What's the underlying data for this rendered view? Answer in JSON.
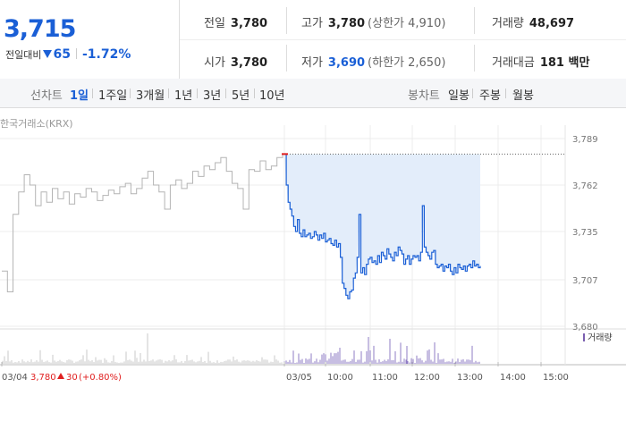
{
  "summary": {
    "price": "3,715",
    "change_label": "전일대비",
    "change_amount": "65",
    "change_percent": "-1.72%"
  },
  "stats": {
    "prev_close_label": "전일",
    "prev_close": "3,780",
    "high_label": "고가",
    "high": "3,780",
    "upper_limit": "(상한가 4,910)",
    "volume_label": "거래량",
    "volume": "48,697",
    "open_label": "시가",
    "open": "3,780",
    "low_label": "저가",
    "low": "3,690",
    "lower_limit": "(하한가 2,650)",
    "trade_value_label": "거래대금",
    "trade_value": "181 백만"
  },
  "tabs": {
    "line_label": "선차트",
    "line_items": [
      "1일",
      "1주일",
      "3개월",
      "1년",
      "3년",
      "5년",
      "10년"
    ],
    "candle_label": "봉차트",
    "candle_items": [
      "일봉",
      "주봉",
      "월봉"
    ],
    "active": "1일"
  },
  "exchange_label": "한국거래소(KRX)",
  "colors": {
    "up": "#e02020",
    "down": "#1a5fd6",
    "prev_day_line": "#b4b4b4",
    "fill": "#e3edfa"
  },
  "chart_data": {
    "type": "line",
    "ylim": [
      3680,
      3789
    ],
    "y_ticks": [
      3789,
      3762,
      3735,
      3707,
      3680
    ],
    "x_ticks": [
      "03/04",
      "03/05",
      "10:00",
      "11:00",
      "12:00",
      "13:00",
      "14:00",
      "15:00"
    ],
    "legend": "거래량",
    "prev_day_caption": "03/04",
    "prev_day_close": "3,780",
    "prev_day_change": "30",
    "prev_day_pct": "(+0.80%)",
    "series": [
      {
        "name": "03/04",
        "x": [
          0,
          2,
          4,
          6,
          8,
          10,
          12,
          14,
          16,
          18,
          20,
          22,
          24,
          26,
          28,
          30,
          32,
          34,
          36,
          38,
          40,
          42,
          44,
          46,
          48,
          50,
          52,
          54,
          56,
          58,
          60,
          62,
          64,
          66,
          68,
          70,
          72,
          74,
          76,
          78,
          80,
          82,
          84,
          86,
          88,
          90,
          92,
          94,
          96,
          98,
          100
        ],
        "values": [
          3712,
          3700,
          3745,
          3758,
          3768,
          3762,
          3750,
          3758,
          3752,
          3760,
          3754,
          3758,
          3751,
          3757,
          3755,
          3760,
          3758,
          3753,
          3756,
          3759,
          3757,
          3761,
          3763,
          3757,
          3760,
          3766,
          3770,
          3762,
          3758,
          3748,
          3762,
          3765,
          3760,
          3763,
          3770,
          3767,
          3773,
          3771,
          3775,
          3778,
          3770,
          3763,
          3760,
          3748,
          3771,
          3770,
          3776,
          3771,
          3773,
          3778,
          3780
        ]
      },
      {
        "name": "03/05",
        "x": [
          0,
          2,
          4,
          6,
          8,
          10,
          12,
          14,
          16,
          18,
          20,
          22,
          24,
          26,
          28,
          30,
          32,
          34,
          36,
          38,
          40,
          42,
          44,
          46,
          48,
          50,
          52,
          54,
          56,
          58,
          60,
          62,
          64,
          66,
          68,
          70,
          72,
          74,
          76,
          78,
          80,
          82,
          84,
          86,
          88,
          90,
          92,
          94,
          96,
          98,
          100,
          102,
          104,
          106,
          108,
          110,
          112,
          114,
          116,
          118,
          120,
          122,
          124,
          126,
          128,
          130,
          132,
          134,
          136,
          138,
          140,
          142,
          144,
          146,
          148,
          150,
          152,
          154,
          156,
          158,
          160,
          162,
          164,
          166,
          168,
          170,
          172,
          174,
          176,
          178,
          180,
          182,
          184,
          186,
          188,
          190,
          192,
          194,
          196,
          198,
          200,
          202,
          204,
          206,
          208,
          210
        ],
        "values": [
          3780,
          3762,
          3752,
          3748,
          3744,
          3738,
          3735,
          3742,
          3734,
          3732,
          3736,
          3732,
          3733,
          3734,
          3731,
          3732,
          3735,
          3733,
          3730,
          3733,
          3731,
          3734,
          3729,
          3730,
          3731,
          3728,
          3727,
          3730,
          3726,
          3728,
          3720,
          3705,
          3702,
          3698,
          3696,
          3700,
          3701,
          3708,
          3711,
          3720,
          3745,
          3711,
          3714,
          3710,
          3716,
          3719,
          3720,
          3717,
          3718,
          3716,
          3721,
          3717,
          3723,
          3721,
          3719,
          3725,
          3722,
          3720,
          3718,
          3723,
          3721,
          3726,
          3724,
          3722,
          3716,
          3719,
          3721,
          3716,
          3719,
          3721,
          3720,
          3721,
          3718,
          3723,
          3750,
          3726,
          3723,
          3721,
          3719,
          3723,
          3724,
          3716,
          3714,
          3715,
          3716,
          3712,
          3715,
          3714,
          3716,
          3712,
          3710,
          3714,
          3711,
          3716,
          3714,
          3713,
          3715,
          3712,
          3715,
          3716,
          3714,
          3718,
          3715,
          3716,
          3714,
          3715
        ]
      }
    ]
  }
}
